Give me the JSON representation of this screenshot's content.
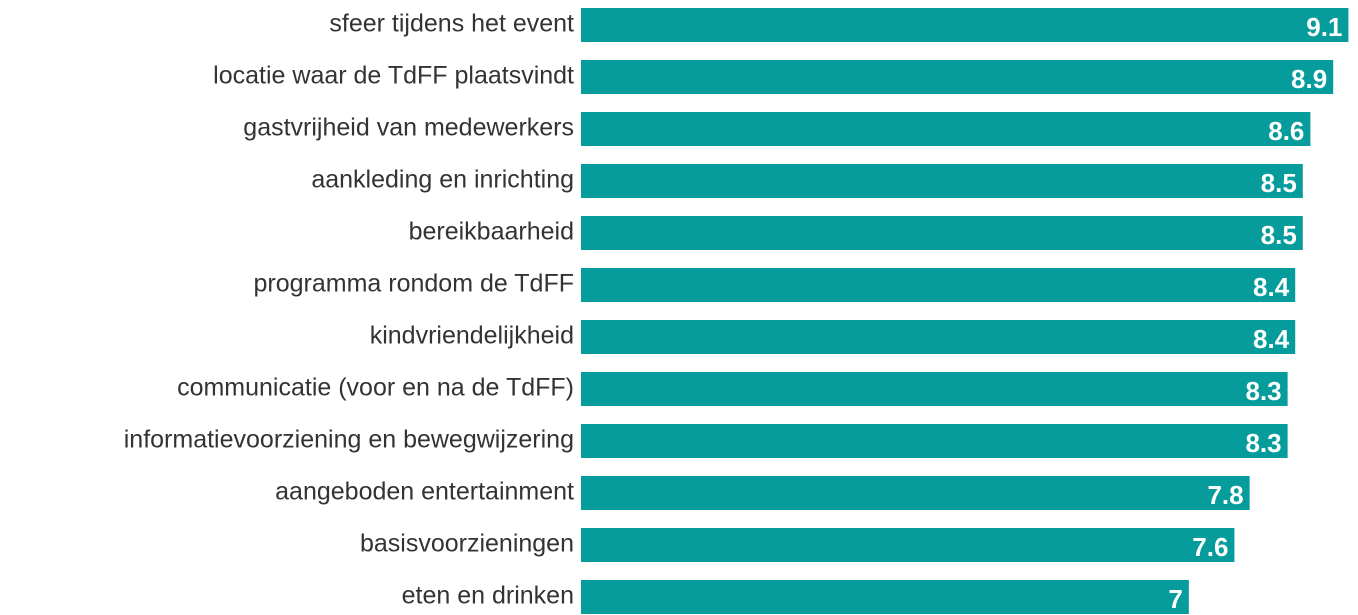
{
  "chart_data": {
    "type": "bar",
    "orientation": "horizontal",
    "categories": [
      "sfeer tijdens het event",
      "locatie waar de TdFF plaatsvindt",
      "gastvrijheid van medewerkers",
      "aankleding en inrichting",
      "bereikbaarheid",
      "programma rondom de TdFF",
      "kindvriendelijkheid",
      "communicatie (voor en na de TdFF)",
      "informatievoorziening en bewegwijzering",
      "aangeboden entertainment",
      "basisvoorzieningen",
      "eten en drinken"
    ],
    "values": [
      9.1,
      8.9,
      8.6,
      8.5,
      8.5,
      8.4,
      8.4,
      8.3,
      8.3,
      7.8,
      7.6,
      7
    ],
    "color": "#079c9c",
    "xlim": [
      -1,
      9.2
    ]
  }
}
